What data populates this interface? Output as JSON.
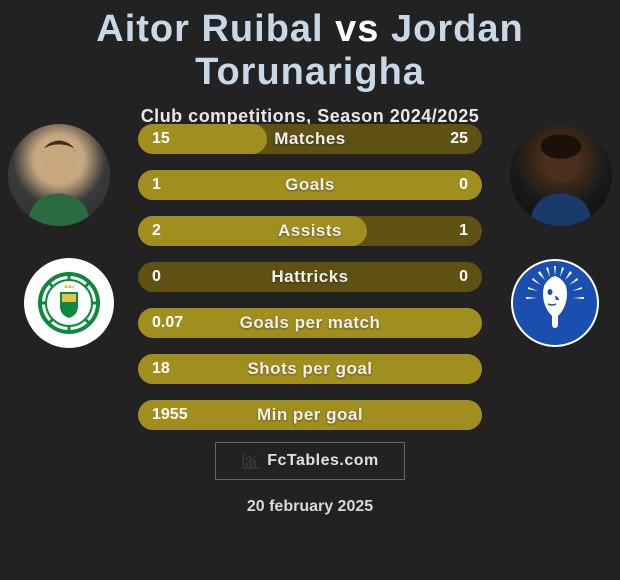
{
  "colors": {
    "bg": "#222222",
    "bar_bg": "#5f5113",
    "bar_fill": "#a08e1f",
    "text": "#ffffff",
    "subtle": "#e8e8e8",
    "title_name": "#c8d8e8"
  },
  "title": {
    "player_a": "Aitor Ruibal",
    "vs": "vs",
    "player_b": "Jordan Torunarigha"
  },
  "subtitle": "Club competitions, Season 2024/2025",
  "date": "20 february 2025",
  "logo_text": "FcTables.com",
  "stats": [
    {
      "label": "Matches",
      "a": "15",
      "b": "25",
      "fill_side": "left",
      "fill_pct": 37.5
    },
    {
      "label": "Goals",
      "a": "1",
      "b": "0",
      "fill_side": "left",
      "fill_pct": 100
    },
    {
      "label": "Assists",
      "a": "2",
      "b": "1",
      "fill_side": "left",
      "fill_pct": 66.6
    },
    {
      "label": "Hattricks",
      "a": "0",
      "b": "0",
      "fill_side": "left",
      "fill_pct": 0
    },
    {
      "label": "Goals per match",
      "a": "0.07",
      "b": "",
      "fill_side": "left",
      "fill_pct": 100
    },
    {
      "label": "Shots per goal",
      "a": "18",
      "b": "",
      "fill_side": "left",
      "fill_pct": 100
    },
    {
      "label": "Min per goal",
      "a": "1955",
      "b": "",
      "fill_side": "left",
      "fill_pct": 100
    }
  ],
  "club_a": {
    "name": "real-betis",
    "bg": "#ffffff",
    "primary": "#0a8a3a",
    "accent": "#e6c24a"
  },
  "club_b": {
    "name": "gent",
    "bg": "transparent",
    "primary": "#1a4fb0",
    "accent": "#ffffff"
  }
}
